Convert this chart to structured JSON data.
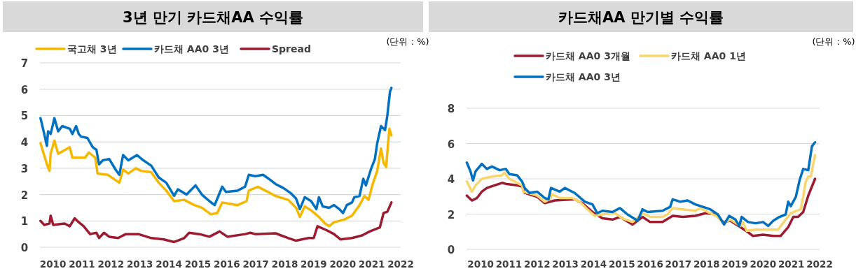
{
  "chart_data": [
    {
      "type": "line",
      "title": "3년 만기 카드채AA 수익률",
      "annotations": [
        "(단위 : %)"
      ],
      "legend": "top",
      "grid": "y",
      "xlim": [
        2009.55,
        2022.0
      ],
      "xticks": [
        2010,
        2011,
        2012,
        2013,
        2014,
        2015,
        2016,
        2017,
        2018,
        2019,
        2020,
        2021,
        2022
      ],
      "ylim": [
        0,
        7
      ],
      "yticks": [
        0,
        1,
        2,
        3,
        4,
        5,
        6,
        7
      ],
      "series": [
        {
          "name": "국고채 3년",
          "color": "#f5b800",
          "x": [
            2009.57,
            2009.79,
            2009.88,
            2009.92,
            2010.05,
            2010.18,
            2010.58,
            2010.67,
            2011.11,
            2011.24,
            2011.46,
            2011.54,
            2011.89,
            2012.16,
            2012.29,
            2012.42,
            2012.6,
            2012.86,
            2013.04,
            2013.39,
            2013.65,
            2013.91,
            2014.18,
            2014.53,
            2014.88,
            2015.14,
            2015.45,
            2015.67,
            2015.84,
            2016.37,
            2016.68,
            2016.76,
            2017.07,
            2017.33,
            2017.68,
            2018.12,
            2018.39,
            2018.52,
            2018.69,
            2018.91,
            2019.18,
            2019.39,
            2019.53,
            2019.7,
            2020.05,
            2020.32,
            2020.58,
            2020.75,
            2020.89,
            2021.02,
            2021.19,
            2021.32,
            2021.41,
            2021.5,
            2021.54,
            2021.61,
            2021.68
          ],
          "values": [
            3.95,
            3.15,
            2.9,
            3.55,
            4.05,
            3.55,
            3.8,
            3.4,
            3.4,
            3.6,
            3.4,
            2.8,
            2.75,
            2.55,
            2.45,
            2.95,
            2.8,
            3.0,
            2.9,
            2.85,
            2.45,
            2.15,
            1.75,
            1.8,
            1.6,
            1.5,
            1.25,
            1.3,
            1.7,
            1.6,
            1.75,
            2.15,
            2.3,
            2.15,
            1.95,
            1.8,
            1.5,
            1.15,
            1.55,
            1.4,
            1.15,
            0.9,
            0.8,
            0.95,
            1.05,
            1.2,
            1.6,
            1.95,
            1.8,
            2.35,
            2.9,
            3.75,
            3.2,
            3.05,
            3.6,
            4.5,
            4.25
          ]
        },
        {
          "name": "카드채 AA0 3년",
          "color": "#0070c0",
          "x": [
            2009.57,
            2009.7,
            2009.79,
            2009.83,
            2009.92,
            2010.05,
            2010.18,
            2010.32,
            2010.58,
            2010.67,
            2010.8,
            2010.89,
            2010.97,
            2011.19,
            2011.37,
            2011.5,
            2011.59,
            2011.72,
            2011.94,
            2012.16,
            2012.29,
            2012.42,
            2012.6,
            2012.9,
            2013.12,
            2013.39,
            2013.65,
            2013.91,
            2014.18,
            2014.31,
            2014.61,
            2014.92,
            2015.14,
            2015.4,
            2015.58,
            2015.84,
            2015.97,
            2016.37,
            2016.63,
            2016.76,
            2016.98,
            2017.25,
            2017.51,
            2017.68,
            2017.95,
            2018.21,
            2018.39,
            2018.52,
            2018.69,
            2018.91,
            2019.09,
            2019.18,
            2019.31,
            2019.53,
            2019.7,
            2019.88,
            2020.01,
            2020.14,
            2020.32,
            2020.4,
            2020.58,
            2020.71,
            2020.8,
            2020.97,
            2021.11,
            2021.19,
            2021.32,
            2021.46,
            2021.54,
            2021.63,
            2021.68
          ],
          "values": [
            4.9,
            4.3,
            3.85,
            4.4,
            4.3,
            4.9,
            4.4,
            4.6,
            4.5,
            4.3,
            4.6,
            4.3,
            4.2,
            4.15,
            3.8,
            3.7,
            3.15,
            3.3,
            3.35,
            2.95,
            2.75,
            3.5,
            3.3,
            3.5,
            3.3,
            3.1,
            2.65,
            2.45,
            1.95,
            2.2,
            2.0,
            2.35,
            2.0,
            1.75,
            1.6,
            2.3,
            2.1,
            2.15,
            2.3,
            2.75,
            2.7,
            2.75,
            2.55,
            2.4,
            2.25,
            2.05,
            1.85,
            1.45,
            1.9,
            1.75,
            1.45,
            1.9,
            1.55,
            1.5,
            1.6,
            1.45,
            1.3,
            1.6,
            1.7,
            1.9,
            1.95,
            2.6,
            2.35,
            2.95,
            3.35,
            3.95,
            4.6,
            4.45,
            5.0,
            5.9,
            6.05
          ]
        },
        {
          "name": "Spread",
          "color": "#9b1b30",
          "x": [
            2009.57,
            2009.7,
            2009.88,
            2009.92,
            2010.01,
            2010.4,
            2010.58,
            2010.75,
            2010.89,
            2011.06,
            2011.28,
            2011.5,
            2011.59,
            2011.76,
            2011.94,
            2012.25,
            2012.51,
            2012.95,
            2013.39,
            2013.82,
            2014.18,
            2014.53,
            2014.7,
            2015.05,
            2015.4,
            2015.75,
            2016.02,
            2016.63,
            2016.81,
            2016.98,
            2017.68,
            2018.12,
            2018.39,
            2018.82,
            2019.0,
            2019.13,
            2019.44,
            2019.7,
            2019.92,
            2020.32,
            2020.67,
            2020.93,
            2021.28,
            2021.41,
            2021.54,
            2021.68
          ],
          "values": [
            1.0,
            0.85,
            0.9,
            1.2,
            0.85,
            0.9,
            0.8,
            1.1,
            0.95,
            0.8,
            0.5,
            0.55,
            0.35,
            0.55,
            0.4,
            0.35,
            0.5,
            0.5,
            0.35,
            0.3,
            0.2,
            0.35,
            0.55,
            0.5,
            0.4,
            0.6,
            0.4,
            0.5,
            0.55,
            0.5,
            0.53,
            0.35,
            0.25,
            0.35,
            0.35,
            0.8,
            0.65,
            0.5,
            0.3,
            0.35,
            0.45,
            0.6,
            0.75,
            1.3,
            1.35,
            1.7
          ]
        }
      ]
    },
    {
      "type": "line",
      "title": "카드채AA 만기별 수익률",
      "annotations": [
        "(단위 : %)"
      ],
      "legend": "top",
      "grid": "y",
      "xlim": [
        2009.5,
        2022.0
      ],
      "xticks": [
        2010,
        2011,
        2012,
        2013,
        2014,
        2015,
        2016,
        2017,
        2018,
        2019,
        2020,
        2021,
        2022
      ],
      "ylim": [
        0,
        8
      ],
      "yticks": [
        0,
        2,
        4,
        6,
        8
      ],
      "series": [
        {
          "name": "카드채 AA0 3개월",
          "color": "#9b1b30",
          "x": [
            2009.51,
            2009.69,
            2009.87,
            2010.04,
            2010.22,
            2010.49,
            2010.76,
            2010.93,
            2011.29,
            2011.47,
            2011.56,
            2012.0,
            2012.27,
            2012.62,
            2013.33,
            2013.6,
            2013.96,
            2014.31,
            2014.67,
            2014.93,
            2015.38,
            2015.73,
            2016.0,
            2016.44,
            2016.8,
            2017.16,
            2017.6,
            2017.96,
            2018.31,
            2018.58,
            2018.84,
            2019.2,
            2019.47,
            2019.64,
            2020.0,
            2020.36,
            2020.62,
            2020.89,
            2021.07,
            2021.24,
            2021.42,
            2021.6,
            2021.84
          ],
          "values": [
            3.05,
            2.77,
            2.91,
            3.27,
            3.48,
            3.63,
            3.77,
            3.7,
            3.63,
            3.56,
            3.2,
            2.98,
            2.62,
            2.77,
            2.84,
            2.62,
            2.12,
            1.76,
            1.69,
            1.84,
            1.41,
            1.84,
            1.55,
            1.55,
            1.9,
            1.84,
            1.9,
            2.05,
            1.98,
            1.55,
            1.62,
            1.26,
            0.97,
            0.76,
            0.83,
            0.76,
            0.76,
            1.26,
            1.84,
            1.84,
            2.12,
            3.05,
            4.0
          ]
        },
        {
          "name": "카드채 AA0 1년",
          "color": "#f9d56e",
          "x": [
            2009.51,
            2009.69,
            2009.82,
            2010.04,
            2010.4,
            2010.76,
            2010.84,
            2011.02,
            2011.29,
            2011.47,
            2011.51,
            2011.69,
            2012.0,
            2012.27,
            2012.44,
            2012.53,
            2012.8,
            2013.24,
            2013.51,
            2013.78,
            2014.04,
            2014.31,
            2014.76,
            2015.02,
            2015.38,
            2015.73,
            2016.0,
            2016.44,
            2016.62,
            2016.8,
            2017.16,
            2017.6,
            2017.78,
            2018.04,
            2018.4,
            2018.58,
            2018.84,
            2019.2,
            2019.29,
            2019.42,
            2019.73,
            2020.18,
            2020.53,
            2020.8,
            2020.98,
            2021.33,
            2021.42,
            2021.51,
            2021.6,
            2021.69,
            2021.84
          ],
          "values": [
            3.85,
            3.27,
            3.63,
            4.0,
            4.13,
            4.2,
            4.35,
            4.0,
            3.77,
            3.63,
            3.27,
            3.2,
            3.05,
            2.7,
            2.84,
            3.13,
            2.91,
            2.91,
            2.7,
            2.27,
            1.9,
            1.98,
            2.05,
            1.76,
            1.55,
            2.05,
            1.84,
            1.84,
            1.98,
            2.34,
            2.27,
            2.19,
            2.34,
            2.12,
            1.84,
            1.48,
            1.69,
            1.33,
            1.55,
            1.05,
            1.12,
            1.12,
            1.12,
            1.69,
            2.05,
            2.27,
            2.98,
            3.84,
            4.13,
            4.13,
            5.35
          ]
        },
        {
          "name": "카드채 AA0 3년",
          "color": "#0070c0",
          "x": [
            2009.51,
            2009.64,
            2009.73,
            2009.82,
            2010.04,
            2010.22,
            2010.4,
            2010.67,
            2010.89,
            2011.02,
            2011.29,
            2011.47,
            2011.56,
            2011.73,
            2012.0,
            2012.27,
            2012.4,
            2012.49,
            2012.8,
            2012.98,
            2013.33,
            2013.69,
            2013.96,
            2014.13,
            2014.31,
            2014.67,
            2014.93,
            2015.2,
            2015.56,
            2015.73,
            2015.91,
            2016.44,
            2016.71,
            2016.8,
            2017.07,
            2017.33,
            2017.6,
            2017.87,
            2018.13,
            2018.4,
            2018.62,
            2018.8,
            2019.02,
            2019.16,
            2019.24,
            2019.47,
            2019.73,
            2020.0,
            2020.18,
            2020.36,
            2020.58,
            2020.8,
            2020.89,
            2020.98,
            2021.16,
            2021.29,
            2021.42,
            2021.6,
            2021.73,
            2021.84
          ],
          "values": [
            4.92,
            4.42,
            3.91,
            4.42,
            4.85,
            4.56,
            4.7,
            4.49,
            4.56,
            4.27,
            4.2,
            3.84,
            3.48,
            3.2,
            3.27,
            2.91,
            2.84,
            3.48,
            3.27,
            3.48,
            3.2,
            2.7,
            2.55,
            2.05,
            2.19,
            2.12,
            2.34,
            1.98,
            1.62,
            2.27,
            2.12,
            2.19,
            2.41,
            2.84,
            2.7,
            2.77,
            2.55,
            2.41,
            2.27,
            1.98,
            1.41,
            1.9,
            1.69,
            1.33,
            1.84,
            1.55,
            1.48,
            1.55,
            1.33,
            1.62,
            1.84,
            1.98,
            2.7,
            2.45,
            2.98,
            3.91,
            4.56,
            4.49,
            5.85,
            6.07
          ]
        }
      ]
    }
  ]
}
